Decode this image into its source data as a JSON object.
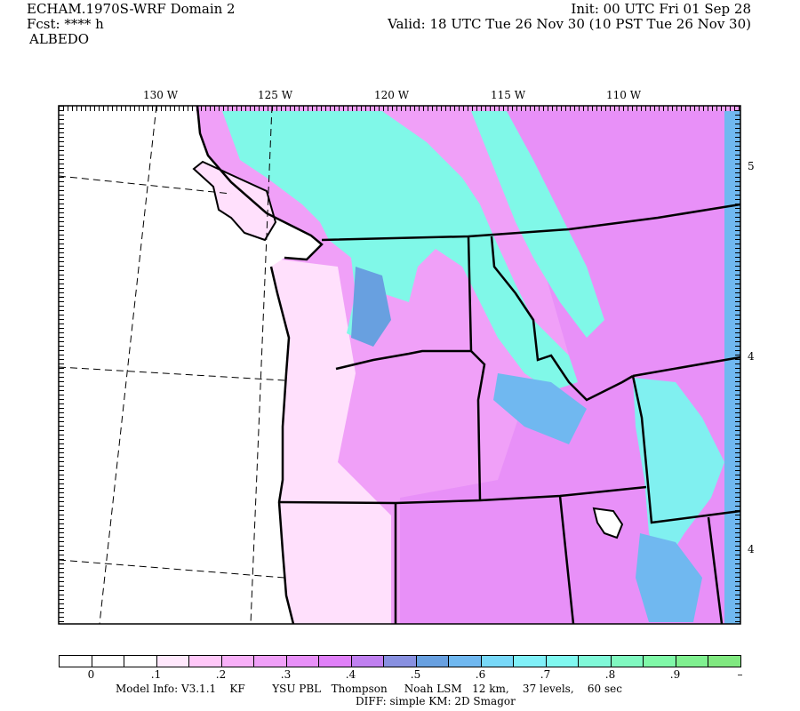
{
  "header": {
    "model": "ECHAM.1970S-WRF Domain 2",
    "fcst": "Fcst: **** h",
    "field": "ALBEDO",
    "init": "Init: 00 UTC Fri 01 Sep 28",
    "valid": "Valid: 18 UTC Tue 26 Nov 30 (10 PST Tue 26 Nov 30)"
  },
  "map": {
    "lon_labels": [
      "130 W",
      "125 W",
      "120 W",
      "115 W",
      "110 W"
    ],
    "lat_labels": [
      "5",
      "4",
      "4"
    ]
  },
  "colorbar": {
    "colors": [
      "#ffffff",
      "#ffffff",
      "#ffffff",
      "#ffe8fc",
      "#ffc8f8",
      "#f8b0f8",
      "#f0a0f8",
      "#e890f8",
      "#e080f8",
      "#c080f0",
      "#8890e0",
      "#68a0e0",
      "#70b8f0",
      "#78d8f8",
      "#80f0f8",
      "#80f8f0",
      "#80f8d8",
      "#80f8c0",
      "#80f8a8",
      "#80f090",
      "#80e880"
    ],
    "labels": [
      "0",
      ".1",
      ".2",
      ".3",
      ".4",
      ".5",
      ".6",
      ".7",
      ".8",
      ".9",
      "–"
    ]
  },
  "footer": {
    "line1": "Model Info: V3.1.1    KF        YSU PBL   Thompson     Noah LSM   12 km,    37 levels,    60 sec",
    "line2": "DIFF: simple KM: 2D Smagor"
  }
}
